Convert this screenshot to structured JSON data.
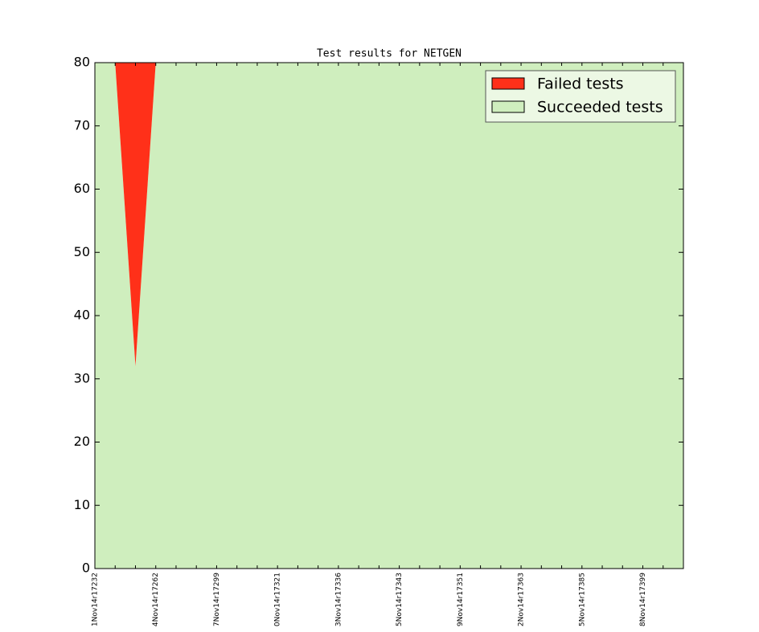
{
  "chart_data": {
    "type": "stacked_area",
    "title": "Test results for NETGEN",
    "categories": [
      "1Nov14r17232",
      null,
      null,
      "4Nov14r17262",
      null,
      null,
      "7Nov14r17299",
      null,
      null,
      "0Nov14r17321",
      null,
      null,
      "3Nov14r17336",
      null,
      null,
      "5Nov14r17343",
      null,
      null,
      "9Nov14r17351",
      null,
      null,
      "2Nov14r17363",
      null,
      null,
      "5Nov14r17385",
      null,
      null,
      "8Nov14r17399",
      null,
      null
    ],
    "series": [
      {
        "name": "Failed tests",
        "color": "#ff3019",
        "values": [
          0,
          0,
          48,
          0,
          0,
          0,
          0,
          0,
          0,
          0,
          0,
          0,
          0,
          0,
          0,
          0,
          0,
          0,
          0,
          0,
          0,
          0,
          0,
          0,
          0,
          0,
          0,
          0,
          0,
          0
        ]
      },
      {
        "name": "Succeeded tests",
        "color": "#cfeebe",
        "values": [
          80,
          80,
          32,
          80,
          80,
          80,
          80,
          80,
          80,
          80,
          80,
          80,
          80,
          80,
          80,
          80,
          80,
          80,
          80,
          80,
          80,
          80,
          80,
          80,
          80,
          80,
          80,
          80,
          80,
          80
        ]
      }
    ],
    "ylim": [
      0,
      80
    ],
    "yticks": [
      0,
      10,
      20,
      30,
      40,
      50,
      60,
      70,
      80
    ],
    "legend": "upper right"
  }
}
